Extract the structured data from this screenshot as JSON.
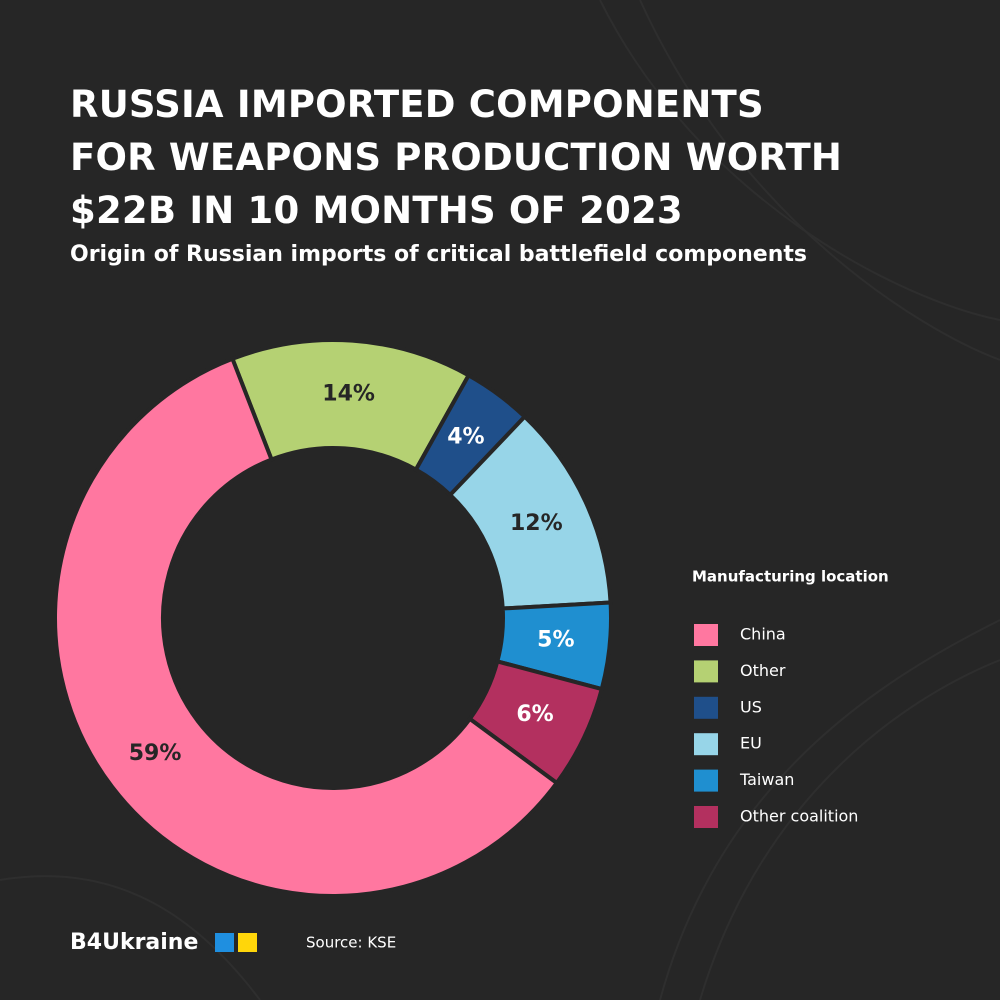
{
  "chart_data": {
    "type": "donut",
    "title": "RUSSIA IMPORTED COMPONENTS\nFOR WEAPONS PRODUCTION WORTH\n$22B IN 10 MONTHS OF 2023",
    "subtitle": "Origin of Russian imports of critical battlefield components",
    "legend_title": "Manufacturing location",
    "categories": [
      "China",
      "Other",
      "US",
      "EU",
      "Taiwan",
      "Other coalition"
    ],
    "values": [
      59,
      14,
      4,
      12,
      5,
      6
    ],
    "value_labels": [
      "59%",
      "14%",
      "4%",
      "12%",
      "5%",
      "6%"
    ],
    "colors": [
      "#ff77a0",
      "#b5d173",
      "#1f4f8a",
      "#97d5e8",
      "#1f8fd0",
      "#b3305f"
    ],
    "legend": "right",
    "brand": "B4Ukraine",
    "source": "Source: KSE"
  }
}
